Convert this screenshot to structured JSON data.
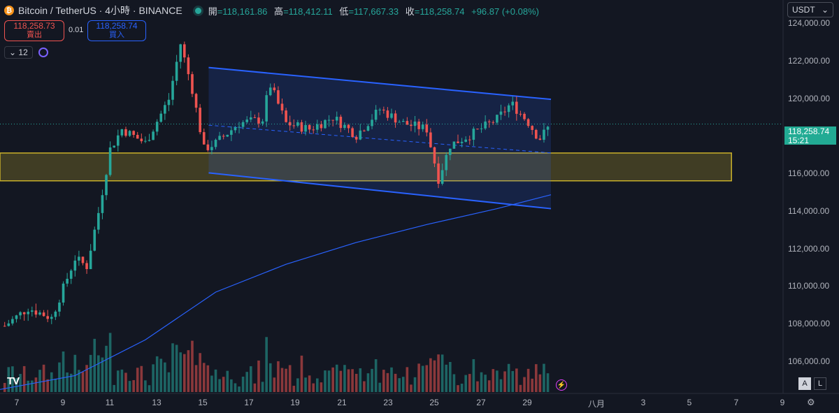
{
  "header": {
    "symbol": "Bitcoin / TetherUS · 4小時 · BINANCE",
    "coin_letter": "₿",
    "ohlc": [
      {
        "label": "開",
        "value": "=118,161.86"
      },
      {
        "label": "高",
        "value": "=118,412.11"
      },
      {
        "label": "低",
        "value": "=117,667.33"
      },
      {
        "label": "收",
        "value": "=118,258.74"
      }
    ],
    "change": "+96.87 (+0.08%)"
  },
  "trade": {
    "sell_price": "118,258.73",
    "sell_label": "賣出",
    "spread": "0.01",
    "buy_price": "118,258.74",
    "buy_label": "買入"
  },
  "indicator": {
    "count": "12",
    "chevron": "⌄"
  },
  "currency_selector": {
    "value": "USDT",
    "chevron": "⌄"
  },
  "price_axis": {
    "labels": [
      "124,000.00",
      "122,000.00",
      "120,000.00",
      "116,000.00",
      "114,000.00",
      "112,000.00",
      "110,000.00",
      "108,000.00",
      "106,000.00"
    ],
    "current_price": "118,258.74",
    "countdown": "15:21"
  },
  "time_axis": {
    "labels": [
      "7",
      "9",
      "11",
      "13",
      "15",
      "17",
      "19",
      "21",
      "23",
      "25",
      "27",
      "29",
      "八月",
      "3",
      "5",
      "7",
      "9"
    ]
  },
  "scale_buttons": {
    "auto": "A",
    "log": "L"
  },
  "branding": {
    "logo": "TV"
  },
  "colors": {
    "up": "#26a69a",
    "down": "#ef5350",
    "channel": "#2962ff",
    "zone": "#c9b02a",
    "ma": "#2962ff",
    "background": "#131722"
  },
  "chart_data": {
    "type": "candlestick",
    "interval": "4h",
    "x_axis": {
      "start_day": 6.8,
      "end_day": 40.2,
      "ticks": [
        "7",
        "9",
        "11",
        "13",
        "15",
        "17",
        "19",
        "21",
        "23",
        "25",
        "27",
        "29",
        "八月",
        "3",
        "5",
        "7",
        "9"
      ]
    },
    "y_axis": {
      "ylim": [
        104700,
        124500
      ],
      "ticks": [
        106000,
        108000,
        110000,
        112000,
        114000,
        116000,
        118000,
        120000,
        122000,
        124000
      ],
      "scale": "linear"
    },
    "current_price": 118258.74,
    "grid": false,
    "key_points": [
      {
        "day": 7.0,
        "close": 108100
      },
      {
        "day": 8.0,
        "close": 109000
      },
      {
        "day": 9.0,
        "close": 108500
      },
      {
        "day": 10.0,
        "close": 111500
      },
      {
        "day": 10.5,
        "close": 111100
      },
      {
        "day": 11.0,
        "close": 113800
      },
      {
        "day": 11.5,
        "close": 117000
      },
      {
        "day": 12.0,
        "close": 118000
      },
      {
        "day": 13.0,
        "close": 117300
      },
      {
        "day": 14.0,
        "close": 119500
      },
      {
        "day": 14.5,
        "close": 122300
      },
      {
        "day": 15.0,
        "close": 120000
      },
      {
        "day": 15.5,
        "close": 117000
      },
      {
        "day": 16.0,
        "close": 117300
      },
      {
        "day": 17.0,
        "close": 118300
      },
      {
        "day": 18.0,
        "close": 118500
      },
      {
        "day": 18.3,
        "close": 120300
      },
      {
        "day": 19.0,
        "close": 118300
      },
      {
        "day": 20.0,
        "close": 118000
      },
      {
        "day": 21.0,
        "close": 118600
      },
      {
        "day": 22.0,
        "close": 117700
      },
      {
        "day": 23.0,
        "close": 119000
      },
      {
        "day": 24.0,
        "close": 118300
      },
      {
        "day": 25.0,
        "close": 118000
      },
      {
        "day": 25.5,
        "close": 115500
      },
      {
        "day": 26.0,
        "close": 117200
      },
      {
        "day": 27.0,
        "close": 117800
      },
      {
        "day": 28.0,
        "close": 118500
      },
      {
        "day": 28.6,
        "close": 119300
      },
      {
        "day": 29.3,
        "close": 118400
      },
      {
        "day": 29.8,
        "close": 117500
      },
      {
        "day": 30.3,
        "close": 118258.74
      }
    ],
    "moving_average": [
      {
        "day": 6.8,
        "value": 104900
      },
      {
        "day": 10.0,
        "value": 105600
      },
      {
        "day": 13.0,
        "value": 107400
      },
      {
        "day": 16.0,
        "value": 109800
      },
      {
        "day": 19.0,
        "value": 111200
      },
      {
        "day": 22.0,
        "value": 112300
      },
      {
        "day": 25.0,
        "value": 113200
      },
      {
        "day": 28.0,
        "value": 114000
      },
      {
        "day": 30.3,
        "value": 114700
      }
    ],
    "annotations": {
      "channel_upper": [
        {
          "day": 15.7,
          "price": 121100
        },
        {
          "day": 30.3,
          "price": 119500
        }
      ],
      "channel_lower": [
        {
          "day": 15.7,
          "price": 115800
        },
        {
          "day": 30.3,
          "price": 114000
        }
      ],
      "channel_mid": [
        {
          "day": 15.7,
          "price": 118200
        },
        {
          "day": 30.3,
          "price": 116800
        }
      ],
      "support_zone": {
        "from_day": 6.8,
        "to_day": 38.0,
        "price_low": 115400,
        "price_high": 116800
      }
    }
  }
}
